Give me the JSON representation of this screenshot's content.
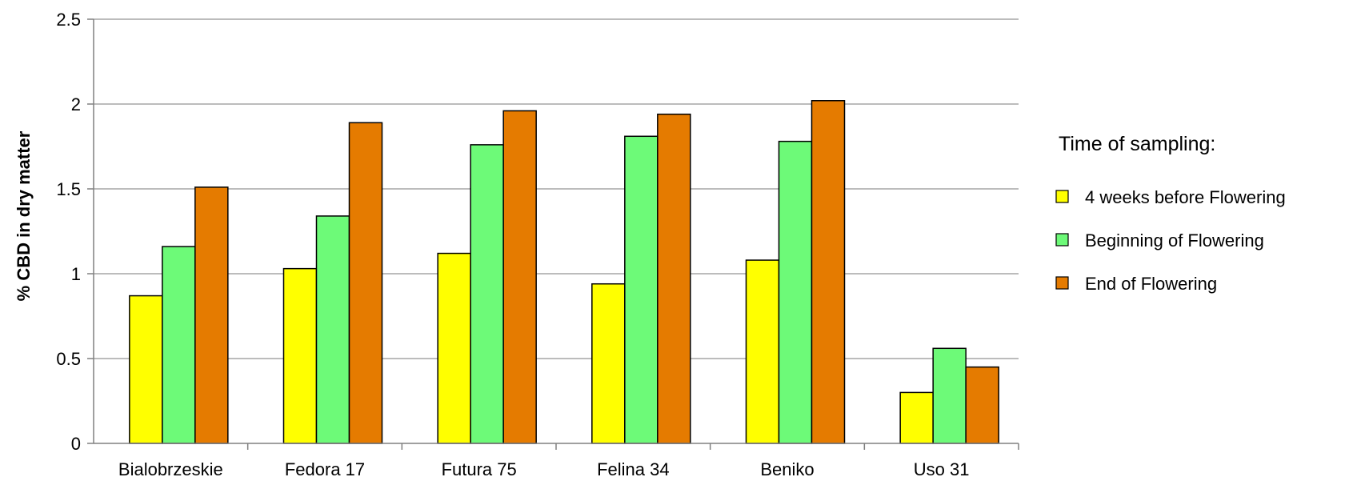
{
  "chart_data": {
    "type": "bar",
    "title": "",
    "xlabel": "",
    "ylabel": "% CBD in dry matter",
    "ylim": [
      0,
      2.5
    ],
    "yticks": [
      "0",
      "0.5",
      "1",
      "1.5",
      "2",
      "2.5"
    ],
    "grid": true,
    "legend_position": "right",
    "legend_title": "Time of sampling:",
    "categories": [
      "Bialobrzeskie",
      "Fedora 17",
      "Futura 75",
      "Felina 34",
      "Beniko",
      "Uso 31"
    ],
    "series": [
      {
        "name": "4 weeks before Flowering",
        "color": "#ffff00",
        "values": [
          0.87,
          1.03,
          1.12,
          0.94,
          1.08,
          0.3
        ]
      },
      {
        "name": "Beginning of Flowering",
        "color": "#6dfa78",
        "values": [
          1.16,
          1.34,
          1.76,
          1.81,
          1.78,
          0.56
        ]
      },
      {
        "name": "End of Flowering",
        "color": "#e57b00",
        "values": [
          1.51,
          1.89,
          1.96,
          1.94,
          2.02,
          0.45
        ]
      }
    ]
  }
}
